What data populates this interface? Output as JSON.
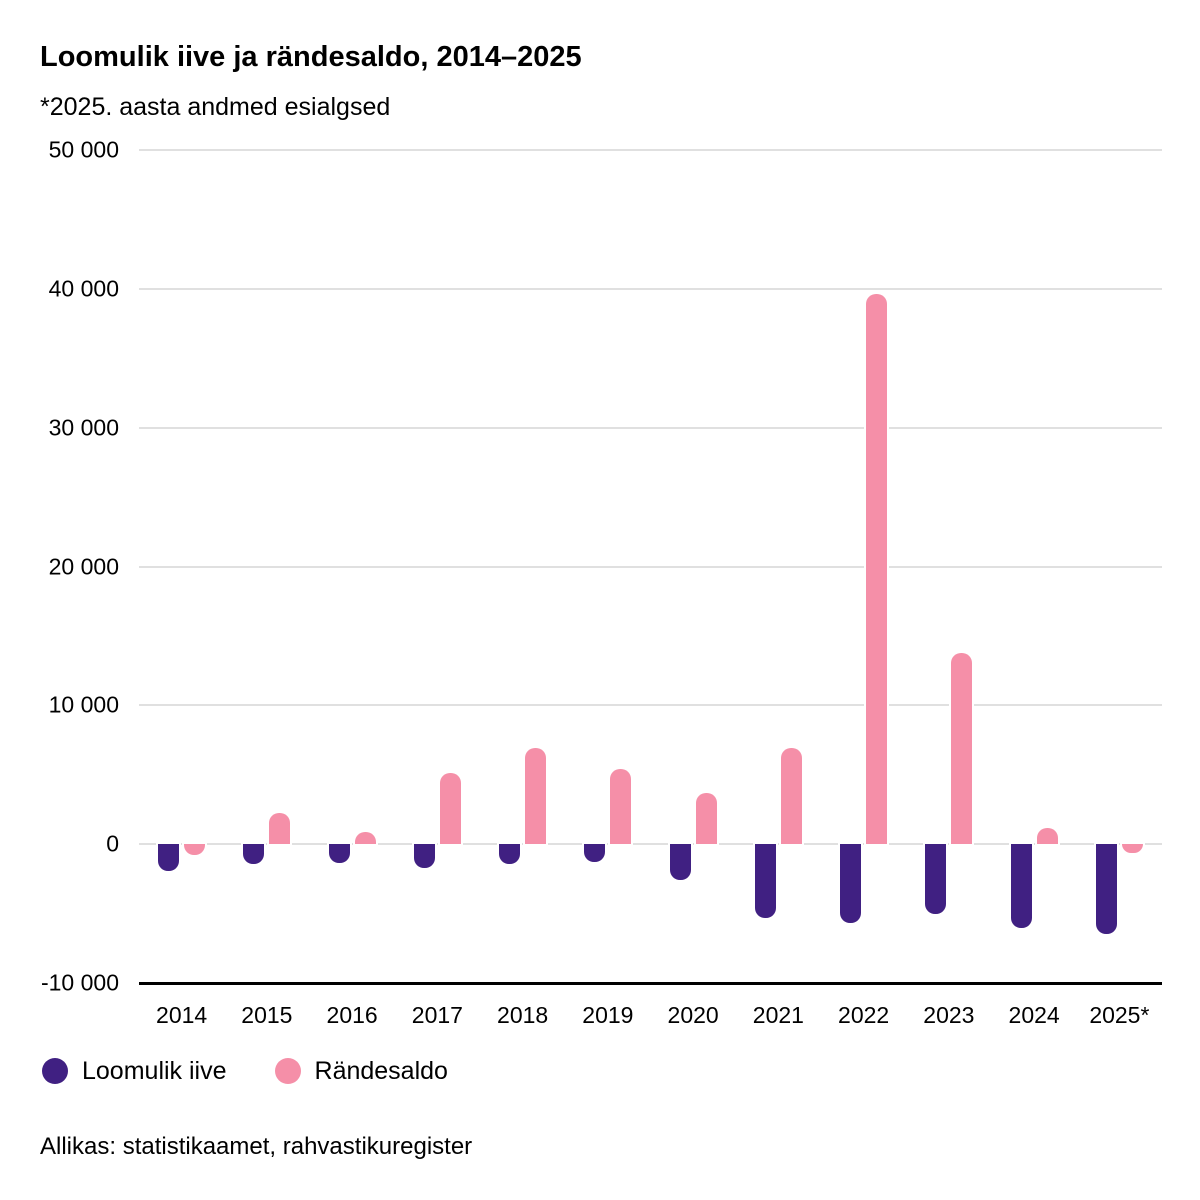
{
  "header": {
    "title": "Loomulik iive ja rändesaldo, 2014–2025",
    "subtitle": "*2025. aasta andmed esialgsed"
  },
  "chart_data": {
    "type": "bar",
    "title": "Loomulik iive ja rändesaldo, 2014–2025",
    "subtitle": "*2025. aasta andmed esialgsed",
    "categories": [
      "2014",
      "2015",
      "2016",
      "2017",
      "2018",
      "2019",
      "2020",
      "2021",
      "2022",
      "2023",
      "2024",
      "2025*"
    ],
    "series": [
      {
        "name": "Loomulik iive",
        "color": "#402082",
        "values": [
          -1900,
          -1400,
          -1350,
          -1700,
          -1400,
          -1250,
          -2550,
          -5300,
          -5650,
          -5050,
          -6050,
          -6450
        ]
      },
      {
        "name": "Rändesaldo",
        "color": "#F58FA8",
        "values": [
          -750,
          2250,
          900,
          5150,
          6950,
          5400,
          3700,
          6950,
          39650,
          13750,
          1200,
          -650
        ]
      }
    ],
    "ylim": [
      -10000,
      50000
    ],
    "yticks": [
      {
        "value": 50000,
        "label": "50 000"
      },
      {
        "value": 40000,
        "label": "40 000"
      },
      {
        "value": 30000,
        "label": "30 000"
      },
      {
        "value": 20000,
        "label": "20 000"
      },
      {
        "value": 10000,
        "label": "10 000"
      },
      {
        "value": 0,
        "label": "0"
      },
      {
        "value": -10000,
        "label": "-10 000"
      }
    ],
    "grid": true,
    "legend_position": "bottom-left",
    "colors": {
      "grid": "#e0e0e0",
      "axis": "#000000",
      "text": "#000000",
      "background": "#ffffff"
    }
  },
  "legend": {
    "items": [
      {
        "label": "Loomulik iive",
        "color": "#402082"
      },
      {
        "label": "Rändesaldo",
        "color": "#F58FA8"
      }
    ]
  },
  "footer": {
    "source": "Allikas: statistikaamet, rahvastikuregister"
  }
}
